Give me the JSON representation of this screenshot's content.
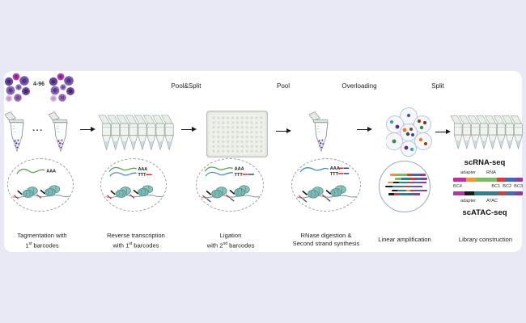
{
  "palette": {
    "background": "#e8e9f4",
    "panel": "#ffffff",
    "cell_purple": "#7a52a8",
    "nucleosome_teal": "#7db8b2",
    "mrna_green": "#5fa054",
    "cdna_blue": "#4a8ec2",
    "barcode_red": "#c03530",
    "barcode_dark_blue": "#27427e",
    "droplet_outline": "#b9c5de",
    "amp_circle_outline": "#93a8d1"
  },
  "top": {
    "cell_range": "4-96",
    "ellipsis": "..."
  },
  "process_labels": {
    "pool_split": "Pool&Split",
    "pool": "Pool",
    "overloading": "Overloading",
    "split": "Split"
  },
  "molecules": {
    "aaa": "AAA",
    "ttt": "TTT"
  },
  "steps": {
    "tagmentation": {
      "line1": "Tagmentation with",
      "line2_pre": "",
      "line2_num": "1",
      "line2_sup": "st",
      "line2_rest": " barcodes"
    },
    "reverse_transcription": {
      "line1": "Reverse transcription",
      "line2_pre": "with ",
      "line2_num": "1",
      "line2_sup": "st",
      "line2_rest": " barcodes"
    },
    "ligation": {
      "line1": "Ligation",
      "line2_pre": "with ",
      "line2_num": "2",
      "line2_sup": "nd",
      "line2_rest": " barcodes"
    },
    "rnase": {
      "line1": "RNase digestion &",
      "line2": "Second strand synthesis"
    },
    "linear_amplification": {
      "line1": "Linear amplification"
    },
    "library_construction": {
      "line1": "Library construction"
    }
  },
  "library": {
    "scrna_title": "scRNA-seq",
    "scatac_title": "scATAC-seq",
    "rna_bar_label_left": "adapter",
    "rna_bar_label_right": "RNA",
    "bc4": "BC4",
    "bc1": "BC1",
    "bc2": "BC2",
    "bc3": "BC3",
    "atac_bar_label_left": "adapter",
    "atac_bar_label_right": "ATAC",
    "rna_bar_segments": [
      {
        "c": "#b5359c",
        "w": 16
      },
      {
        "c": "#f0953f",
        "w": 12
      },
      {
        "c": "#7cb96b",
        "w": 26
      },
      {
        "c": "#d53e36",
        "w": 10
      },
      {
        "c": "#3d6cb4",
        "w": 12
      },
      {
        "c": "#8a3f9e",
        "w": 10
      }
    ],
    "atac_bar_segments": [
      {
        "c": "#b5359c",
        "w": 14
      },
      {
        "c": "#1a1a1a",
        "w": 12
      },
      {
        "c": "#2e7f8f",
        "w": 30
      },
      {
        "c": "#d53e36",
        "w": 9
      },
      {
        "c": "#3d6cb4",
        "w": 11
      },
      {
        "c": "#8a3f9e",
        "w": 10
      }
    ]
  },
  "amplification": {
    "bars": [
      {
        "offset": 6,
        "segments": [
          {
            "c": "#f0953f",
            "w": 8
          },
          {
            "c": "#7cb96b",
            "w": 13
          },
          {
            "c": "#d53e36",
            "w": 6
          },
          {
            "c": "#3d6cb4",
            "w": 8
          },
          {
            "c": "#8a3f9e",
            "w": 9
          }
        ]
      },
      {
        "offset": 12,
        "segments": [
          {
            "c": "#7cb96b",
            "w": 9
          },
          {
            "c": "#2e7f8f",
            "w": 12
          },
          {
            "c": "#d53e36",
            "w": 6
          },
          {
            "c": "#3d6cb4",
            "w": 8
          },
          {
            "c": "#8a3f9e",
            "w": 9
          }
        ]
      },
      {
        "offset": 3,
        "segments": [
          {
            "c": "#f0953f",
            "w": 7
          },
          {
            "c": "#1a1a1a",
            "w": 7
          },
          {
            "c": "#2e7f8f",
            "w": 12
          },
          {
            "c": "#d53e36",
            "w": 6
          },
          {
            "c": "#3d6cb4",
            "w": 7
          },
          {
            "c": "#8a3f9e",
            "w": 9
          }
        ]
      },
      {
        "offset": 0,
        "segments": [
          {
            "c": "#1a1a1a",
            "w": 9
          },
          {
            "c": "#2e7f8f",
            "w": 14
          },
          {
            "c": "#d53e36",
            "w": 6
          },
          {
            "c": "#3d6cb4",
            "w": 8
          },
          {
            "c": "#8a3f9e",
            "w": 9
          }
        ]
      },
      {
        "offset": 8,
        "segments": [
          {
            "c": "#1a1a1a",
            "w": 7
          },
          {
            "c": "#2e7f8f",
            "w": 11
          },
          {
            "c": "#f0953f",
            "w": 6
          },
          {
            "c": "#d53e36",
            "w": 6
          },
          {
            "c": "#3d6cb4",
            "w": 7
          },
          {
            "c": "#8a3f9e",
            "w": 8
          }
        ]
      },
      {
        "offset": 4,
        "segments": [
          {
            "c": "#1a1a1a",
            "w": 7
          },
          {
            "c": "#d53e36",
            "w": 6
          },
          {
            "c": "#2e7f8f",
            "w": 11
          },
          {
            "c": "#3d6cb4",
            "w": 7
          },
          {
            "c": "#8a3f9e",
            "w": 8
          }
        ]
      }
    ]
  }
}
